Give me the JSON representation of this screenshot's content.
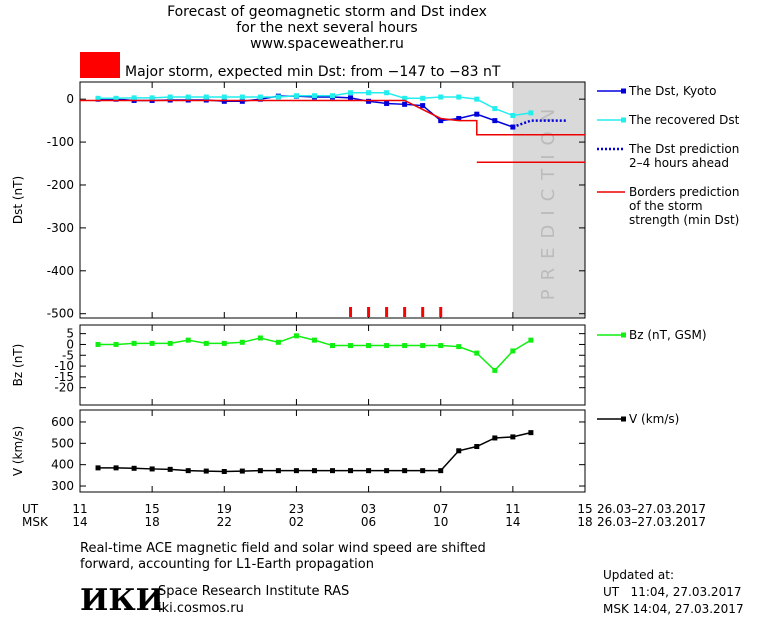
{
  "header": {
    "lines": [
      "Forecast of geomagnetic storm and Dst index",
      "for the next several hours",
      "www.spaceweather.ru"
    ],
    "storm_label": "Major storm, expected min Dst: from −147 to −83 nT",
    "storm_color": "#ff0000"
  },
  "chart_data": [
    {
      "type": "line",
      "ylabel": "Dst (nT)",
      "ylim": [
        -510,
        40
      ],
      "yticks": [
        0,
        -100,
        -200,
        -300,
        -400,
        -500
      ],
      "prediction_label": "PREDICTION",
      "prediction_region": [
        24,
        28
      ],
      "prediction_color": "#d9d9d9",
      "storm_marks_x": [
        15,
        16,
        17,
        18,
        19,
        20
      ],
      "storm_marks_color": "#ff0000",
      "series": [
        {
          "name": "The Dst, Kyoto",
          "color": "#0000dd",
          "marker": true,
          "x": [
            1,
            2,
            3,
            4,
            5,
            6,
            7,
            8,
            9,
            10,
            11,
            12,
            13,
            14,
            15,
            16,
            17,
            18,
            19,
            20,
            21,
            22,
            23,
            24
          ],
          "values": [
            0,
            0,
            -3,
            -3,
            -2,
            -2,
            -2,
            -5,
            -5,
            0,
            7,
            7,
            5,
            5,
            3,
            -5,
            -10,
            -12,
            -15,
            -50,
            -45,
            -35,
            -50,
            -65
          ]
        },
        {
          "name": "The recovered Dst",
          "color": "#22eeee",
          "marker": true,
          "x": [
            1,
            2,
            3,
            4,
            5,
            6,
            7,
            8,
            9,
            10,
            11,
            12,
            13,
            14,
            15,
            16,
            17,
            18,
            19,
            20,
            21,
            22,
            23,
            24,
            25
          ],
          "values": [
            2,
            2,
            3,
            3,
            5,
            5,
            5,
            5,
            5,
            5,
            5,
            8,
            8,
            8,
            15,
            15,
            15,
            2,
            2,
            5,
            5,
            0,
            -22,
            -38,
            -32
          ]
        },
        {
          "name": "The Dst prediction\n2–4 hours ahead",
          "color": "#0000dd",
          "dashed": true,
          "x": [
            24,
            25,
            27
          ],
          "values": [
            -65,
            -50,
            -50
          ]
        },
        {
          "name": "Borders prediction\nof the storm\nstrength (min Dst)",
          "color": "#ee0000",
          "x": [
            0,
            18,
            20,
            21,
            22,
            22,
            28
          ],
          "values": [
            -3,
            -3,
            -45,
            -50,
            -50,
            -83,
            -83
          ]
        },
        {
          "color": "#ee0000",
          "x": [
            22,
            28
          ],
          "values": [
            -147,
            -147
          ]
        }
      ]
    },
    {
      "type": "line",
      "ylabel": "Bz (nT)",
      "ylim": [
        -28,
        9
      ],
      "yticks": [
        5,
        0,
        -5,
        -10,
        -15,
        -20
      ],
      "series": [
        {
          "name": "Bz (nT, GSM)",
          "color": "#11ee11",
          "marker": true,
          "x": [
            1,
            2,
            3,
            4,
            5,
            6,
            7,
            8,
            9,
            10,
            11,
            12,
            13,
            14,
            15,
            16,
            17,
            18,
            19,
            20,
            21,
            22,
            23,
            24,
            25
          ],
          "values": [
            0,
            0,
            0.5,
            0.5,
            0.5,
            2,
            0.5,
            0.5,
            1,
            3,
            1,
            4,
            2,
            -0.5,
            -0.5,
            -0.5,
            -0.5,
            -0.5,
            -0.5,
            -0.5,
            -1,
            -4,
            -12,
            -3,
            2
          ]
        }
      ]
    },
    {
      "type": "line",
      "ylabel": "V (km/s)",
      "ylim": [
        272,
        656
      ],
      "yticks": [
        300,
        400,
        500,
        600
      ],
      "xlim": [
        0,
        28
      ],
      "xticks": [
        {
          "value": 0,
          "label": "11"
        },
        {
          "value": 4,
          "label": "15"
        },
        {
          "value": 8,
          "label": "19"
        },
        {
          "value": 12,
          "label": "23"
        },
        {
          "value": 16,
          "label": "03"
        },
        {
          "value": 20,
          "label": "07"
        },
        {
          "value": 24,
          "label": "11"
        },
        {
          "value": 28,
          "label": "15"
        }
      ],
      "xtick_labels_msk": [
        "14",
        "18",
        "22",
        "02",
        "06",
        "10",
        "14",
        "18"
      ],
      "x_label_ut": "UT",
      "x_label_msk": "MSK",
      "date_range": "26.03–27.03.2017",
      "series": [
        {
          "name": "V (km/s)",
          "color": "#000000",
          "marker": true,
          "x": [
            1,
            2,
            3,
            4,
            5,
            6,
            7,
            8,
            9,
            10,
            11,
            12,
            13,
            14,
            15,
            16,
            17,
            18,
            19,
            20,
            21,
            22,
            23,
            24,
            25
          ],
          "values": [
            385,
            385,
            383,
            380,
            378,
            372,
            370,
            368,
            370,
            372,
            372,
            372,
            372,
            372,
            372,
            372,
            372,
            372,
            372,
            372,
            465,
            485,
            525,
            530,
            550
          ]
        }
      ]
    }
  ],
  "footer": {
    "note": "Real-time ACE magnetic field and solar wind speed are shifted\nforward, accounting for L1-Earth propagation",
    "logo": "ИКИ",
    "institute": "Space Research Institute RAS",
    "url": "iki.cosmos.ru",
    "updated_label": "Updated at:",
    "updated_ut": "UT   11:04, 27.03.2017",
    "updated_msk": "MSK 14:04, 27.03.2017"
  }
}
